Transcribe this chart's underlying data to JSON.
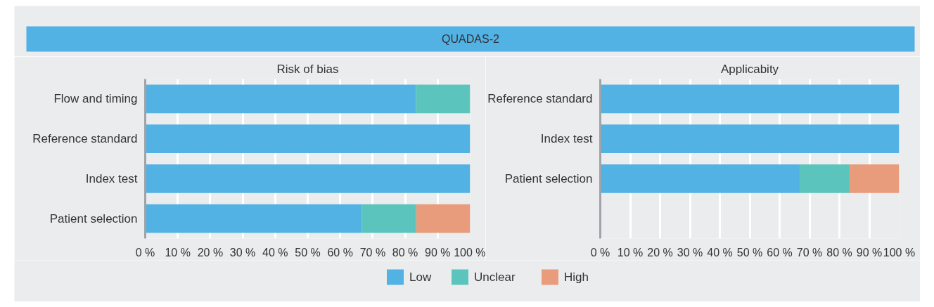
{
  "chart_data": [
    {
      "type": "bar",
      "orientation": "horizontal",
      "stacked": true,
      "title": "Risk of bias",
      "annotations": [
        "QUADAS-2"
      ],
      "categories": [
        "Flow and timing",
        "Reference standard",
        "Index test",
        "Patient selection"
      ],
      "series": [
        {
          "name": "Low",
          "color": "#53b2e4",
          "values": [
            83.3,
            100,
            100,
            66.7
          ]
        },
        {
          "name": "Unclear",
          "color": "#5bc5bd",
          "values": [
            16.7,
            0,
            0,
            16.7
          ]
        },
        {
          "name": "High",
          "color": "#e89c7c",
          "values": [
            0,
            0,
            0,
            16.7
          ]
        }
      ],
      "xlim": [
        0,
        100
      ],
      "xticks": [
        {
          "value": 0,
          "label": "0 %"
        },
        {
          "value": 10,
          "label": "10 %"
        },
        {
          "value": 20,
          "label": "20 %"
        },
        {
          "value": 30,
          "label": "30 %"
        },
        {
          "value": 40,
          "label": "40 %"
        },
        {
          "value": 50,
          "label": "50 %"
        },
        {
          "value": 60,
          "label": "60 %"
        },
        {
          "value": 70,
          "label": "70 %"
        },
        {
          "value": 80,
          "label": "80 %"
        },
        {
          "value": 90,
          "label": "90 %"
        },
        {
          "value": 100,
          "label": "100 %"
        }
      ],
      "grid": "x",
      "legend": "bottom"
    },
    {
      "type": "bar",
      "orientation": "horizontal",
      "stacked": true,
      "title": "Applicabity",
      "categories": [
        "Reference standard",
        "Index test",
        "Patient selection",
        null
      ],
      "series": [
        {
          "color": "#53b2e4",
          "values": [
            100,
            100,
            66.7,
            null
          ]
        },
        {
          "color": "#5bc5bd",
          "values": [
            0,
            0,
            16.7,
            null
          ]
        },
        {
          "color": "#e89c7c",
          "values": [
            0,
            0,
            16.7,
            null
          ]
        }
      ],
      "xlim": [
        0,
        100
      ],
      "xticks": [
        {
          "value": 0,
          "label": "0 %"
        },
        {
          "value": 10,
          "label": "10 %"
        },
        {
          "value": 20,
          "label": "20 %"
        },
        {
          "value": 30,
          "label": "30 %"
        },
        {
          "value": 40,
          "label": "40 %"
        },
        {
          "value": 50,
          "label": "50 %"
        },
        {
          "value": 60,
          "label": "60 %"
        },
        {
          "value": 70,
          "label": "70 %"
        },
        {
          "value": 80,
          "label": "80 %"
        },
        {
          "value": 90,
          "label": "90 %"
        },
        {
          "value": 100,
          "label": "100 %"
        }
      ],
      "grid": "x"
    }
  ]
}
